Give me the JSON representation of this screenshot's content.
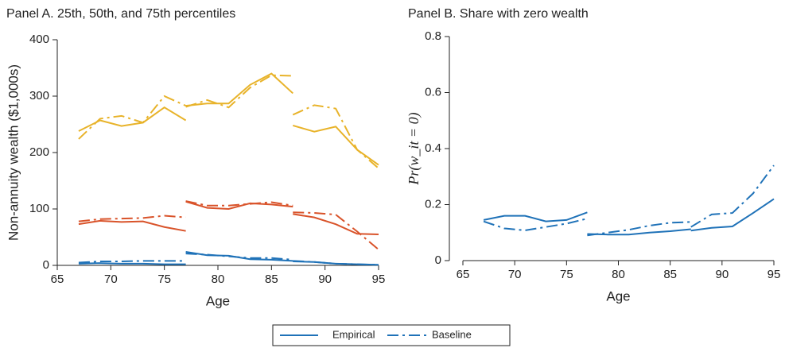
{
  "chart_data": [
    {
      "type": "line",
      "title": "Panel A. 25th, 50th, and 75th percentiles",
      "x_label": "Age",
      "y_label": "Non-annuity wealth ($1,000s)",
      "x": [
        67,
        69,
        71,
        73,
        75,
        77,
        null,
        77,
        79,
        81,
        83,
        85,
        87,
        null,
        87,
        89,
        91,
        93,
        95
      ],
      "xlim": [
        65,
        95
      ],
      "xticks": [
        65,
        70,
        75,
        80,
        85,
        90,
        95
      ],
      "ylim": [
        0,
        400
      ],
      "yticks": [
        0,
        100,
        200,
        300,
        400
      ],
      "series": [
        {
          "style": "solid",
          "color": "#e8b32a",
          "values": [
            238,
            257,
            247,
            253,
            280,
            257,
            null,
            283,
            287,
            287,
            320,
            340,
            305,
            null,
            248,
            237,
            246,
            205,
            178
          ]
        },
        {
          "style": "dashed",
          "color": "#e8b32a",
          "values": [
            224,
            260,
            265,
            253,
            300,
            283,
            null,
            281,
            293,
            280,
            315,
            337,
            336,
            null,
            267,
            284,
            278,
            205,
            172
          ]
        },
        {
          "style": "solid",
          "color": "#d9532a",
          "values": [
            73,
            79,
            77,
            78,
            68,
            61,
            null,
            113,
            102,
            100,
            110,
            108,
            104,
            null,
            91,
            85,
            73,
            56,
            55
          ]
        },
        {
          "style": "dashed",
          "color": "#d9532a",
          "values": [
            78,
            82,
            83,
            84,
            88,
            85,
            null,
            114,
            106,
            106,
            109,
            112,
            106,
            null,
            94,
            93,
            90,
            60,
            28
          ]
        },
        {
          "style": "solid",
          "color": "#1f72b8",
          "values": [
            3,
            4,
            3,
            3,
            2,
            2,
            null,
            24,
            18,
            17,
            11,
            10,
            8,
            null,
            7,
            6,
            3,
            2,
            1
          ]
        },
        {
          "style": "dashed",
          "color": "#1f72b8",
          "values": [
            5,
            7,
            7,
            8,
            8,
            8,
            null,
            21,
            19,
            16,
            13,
            13,
            10,
            null,
            8,
            6,
            3,
            2,
            1
          ]
        }
      ]
    },
    {
      "type": "line",
      "title": "Panel B. Share with zero wealth",
      "x_label": "Age",
      "y_label": "Pr(w_it = 0)",
      "x": [
        67,
        69,
        71,
        73,
        75,
        77,
        null,
        77,
        79,
        81,
        83,
        85,
        87,
        null,
        87,
        89,
        91,
        93,
        95
      ],
      "xlim": [
        65,
        95
      ],
      "xticks": [
        65,
        70,
        75,
        80,
        85,
        90,
        95
      ],
      "ylim": [
        0,
        0.8
      ],
      "yticks": [
        0,
        0.2,
        0.4,
        0.6,
        0.8
      ],
      "series": [
        {
          "style": "solid",
          "color": "#1f72b8",
          "values": [
            0.145,
            0.16,
            0.16,
            0.14,
            0.145,
            0.172,
            null,
            0.095,
            0.093,
            0.093,
            0.1,
            0.105,
            0.112,
            null,
            0.107,
            0.117,
            0.122,
            0.17,
            0.22
          ]
        },
        {
          "style": "dashed",
          "color": "#1f72b8",
          "values": [
            0.14,
            0.115,
            0.108,
            0.12,
            0.132,
            0.15,
            null,
            0.09,
            0.1,
            0.11,
            0.125,
            0.135,
            0.138,
            null,
            0.12,
            0.165,
            0.17,
            0.24,
            0.34
          ]
        }
      ]
    }
  ],
  "legend": {
    "color": "#1f72b8",
    "entries": [
      {
        "name": "Empirical",
        "style": "solid"
      },
      {
        "name": "Baseline",
        "style": "dashed"
      }
    ]
  }
}
